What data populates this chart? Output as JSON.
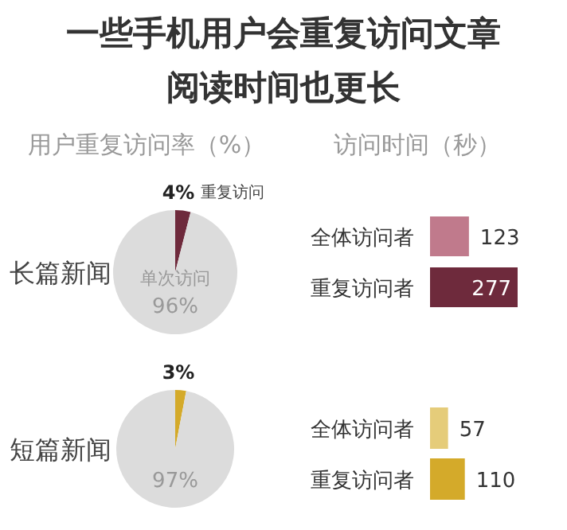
{
  "chart_data": [
    {
      "type": "other",
      "title": "一些手机用户会重复访问文章",
      "subtitle": "阅读时间也更长"
    },
    {
      "type": "pie",
      "title": "用户重复访问率（%）",
      "ylabel": "长篇新闻",
      "categories": [
        "重复访问",
        "单次访问"
      ],
      "values": [
        4,
        96
      ],
      "value_labels": [
        "4%",
        "96%"
      ],
      "colors": [
        "#6e2a3c",
        "#dcdcdc"
      ]
    },
    {
      "type": "bar",
      "orientation": "horizontal",
      "title": "访问时间（秒）",
      "categories": [
        "全体访问者",
        "重复访问者"
      ],
      "values": [
        123,
        277
      ],
      "colors": [
        "#c07a8c",
        "#6e2a3c"
      ],
      "data_labels": true
    },
    {
      "type": "pie",
      "ylabel": "短篇新闻",
      "categories": [
        null,
        null
      ],
      "values": [
        3,
        97
      ],
      "value_labels": [
        "3%",
        "97%"
      ],
      "colors": [
        "#d4aa2a",
        "#dcdcdc"
      ]
    },
    {
      "type": "bar",
      "orientation": "horizontal",
      "categories": [
        "全体访问者",
        "重复访问者"
      ],
      "values": [
        57,
        110
      ],
      "colors": [
        "#e5cc7a",
        "#d4aa2a"
      ],
      "data_labels": true
    }
  ]
}
